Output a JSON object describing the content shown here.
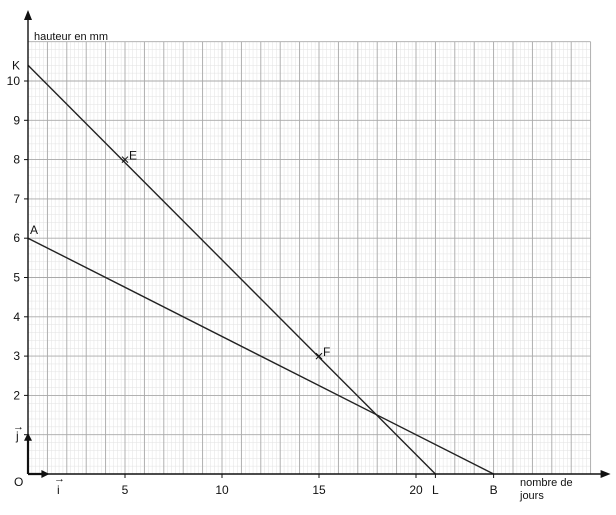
{
  "chart_data": {
    "type": "line",
    "ylabel": "hauteur en mm",
    "xlabel_lines": [
      "nombre de",
      "jours"
    ],
    "origin_label": "O",
    "unit_vectors": {
      "i": "i",
      "j": "j",
      "arrow": "→"
    },
    "xlim": [
      0,
      29
    ],
    "ylim": [
      0,
      11
    ],
    "x_ticks": [
      5,
      10,
      15,
      20
    ],
    "y_ticks": [
      1,
      2,
      3,
      4,
      5,
      6,
      7,
      8,
      9,
      10
    ],
    "x_tick_labels": [
      "5",
      "10",
      "15",
      "20"
    ],
    "y_tick_labels": [
      "2",
      "3",
      "4",
      "5",
      "6",
      "7",
      "8",
      "9",
      "10"
    ],
    "grid": true,
    "series": [
      {
        "points": [
          [
            0,
            10.4
          ],
          [
            21,
            0
          ]
        ]
      },
      {
        "points": [
          [
            0,
            6
          ],
          [
            24,
            0
          ]
        ]
      }
    ],
    "points": [
      {
        "label": "K",
        "x": 0,
        "y": 10.4
      },
      {
        "label": "E",
        "x": 5,
        "y": 8
      },
      {
        "label": "F",
        "x": 15,
        "y": 3
      },
      {
        "label": "A",
        "x": 0,
        "y": 6
      },
      {
        "label": "L",
        "x": 21,
        "y": 0
      },
      {
        "label": "B",
        "x": 24,
        "y": 0
      }
    ]
  }
}
